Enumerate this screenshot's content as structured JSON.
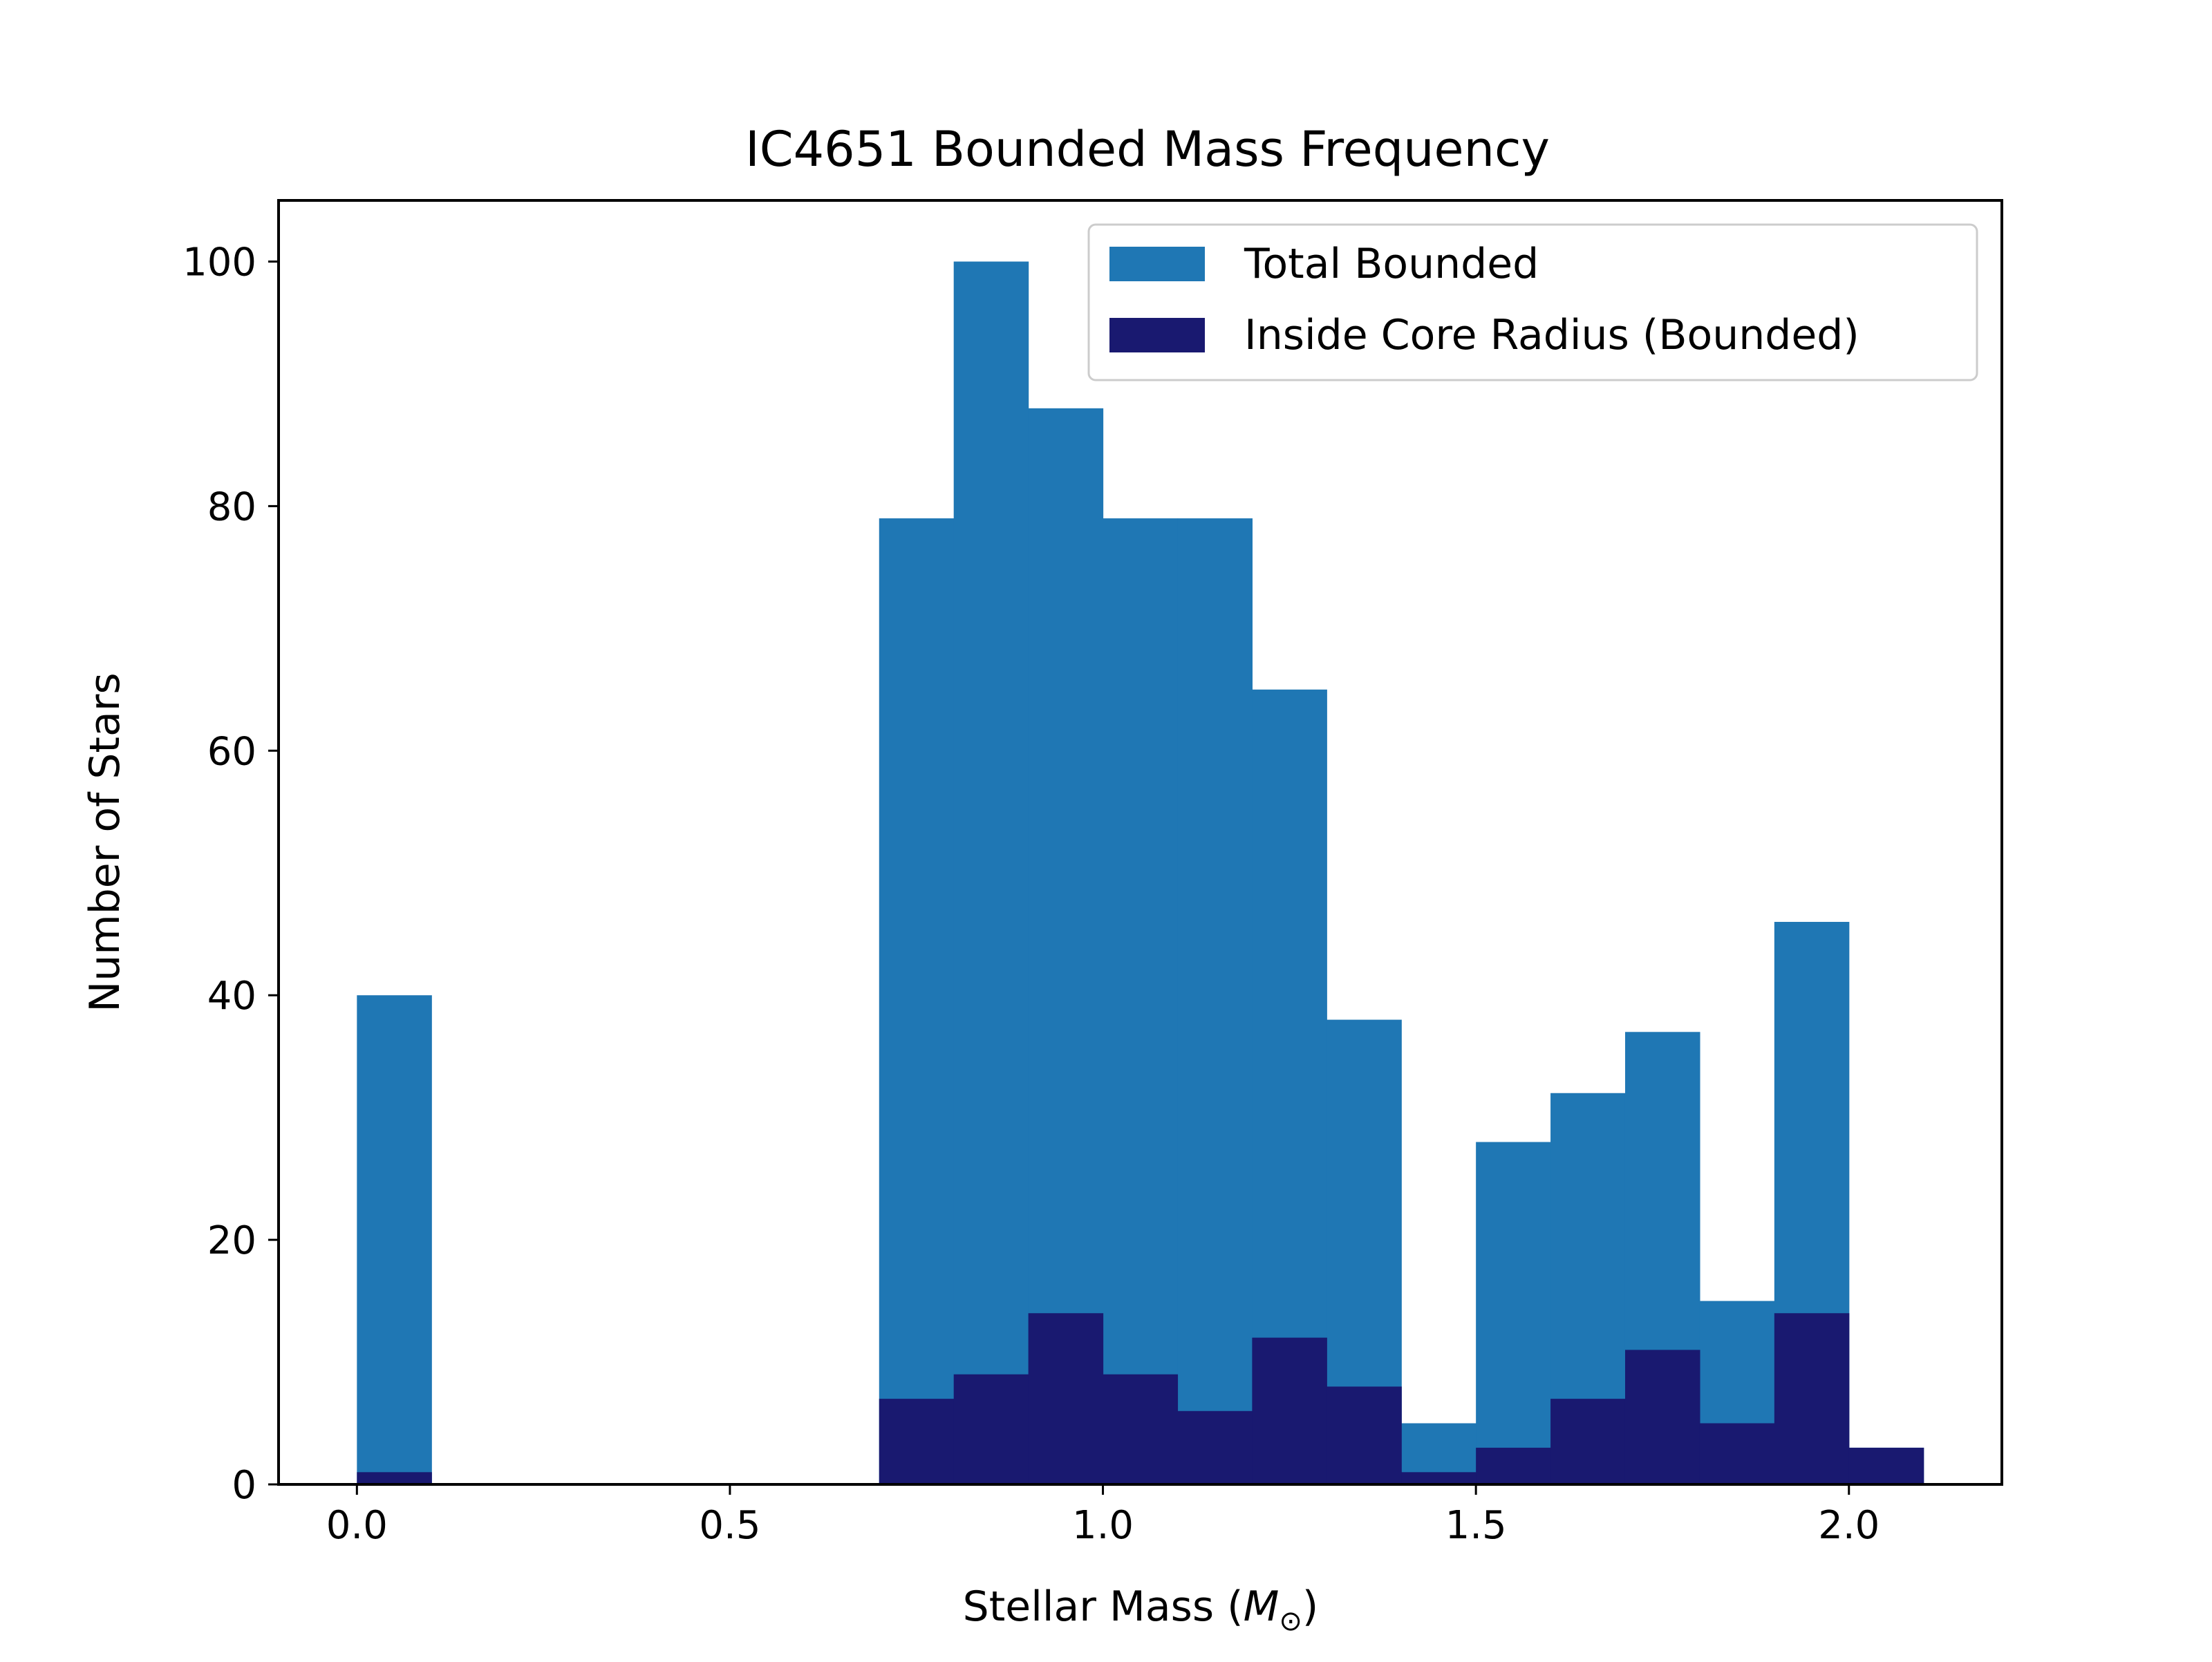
{
  "chart_data": {
    "type": "bar",
    "title": "IC4651 Bounded Mass Frequency",
    "xlabel": "Stellar Mass (M⊙)",
    "xlabel_parts": {
      "prefix": "Stellar Mass (",
      "symbol": "M",
      "subscript": "⊙",
      "suffix": ")"
    },
    "ylabel": "Number of Stars",
    "xlim": [
      -0.105,
      2.205
    ],
    "ylim": [
      0,
      105
    ],
    "xticks": [
      0.0,
      0.5,
      1.0,
      1.5,
      2.0
    ],
    "xtick_labels": [
      "0.0",
      "0.5",
      "1.0",
      "1.5",
      "2.0"
    ],
    "yticks": [
      0,
      20,
      40,
      60,
      80,
      100
    ],
    "ytick_labels": [
      "0",
      "20",
      "40",
      "60",
      "80",
      "100"
    ],
    "bin_edges": [
      0.0,
      0.1,
      0.2,
      0.3,
      0.4,
      0.5,
      0.6,
      0.7,
      0.8,
      0.9,
      1.0,
      1.1,
      1.2,
      1.3,
      1.4,
      1.5,
      1.6,
      1.7,
      1.8,
      1.9,
      2.0,
      2.1
    ],
    "series": [
      {
        "name": "Total Bounded",
        "color": "#1f77b4",
        "values": [
          40,
          0,
          0,
          0,
          0,
          0,
          0,
          79,
          100,
          88,
          79,
          79,
          65,
          38,
          5,
          28,
          32,
          37,
          15,
          46,
          3
        ]
      },
      {
        "name": "Inside Core Radius (Bounded)",
        "color": "#191970",
        "values": [
          1,
          0,
          0,
          0,
          0,
          0,
          0,
          7,
          9,
          14,
          9,
          6,
          12,
          8,
          1,
          3,
          7,
          11,
          5,
          14,
          3
        ]
      }
    ],
    "legend_position": "upper right",
    "grid": false
  }
}
